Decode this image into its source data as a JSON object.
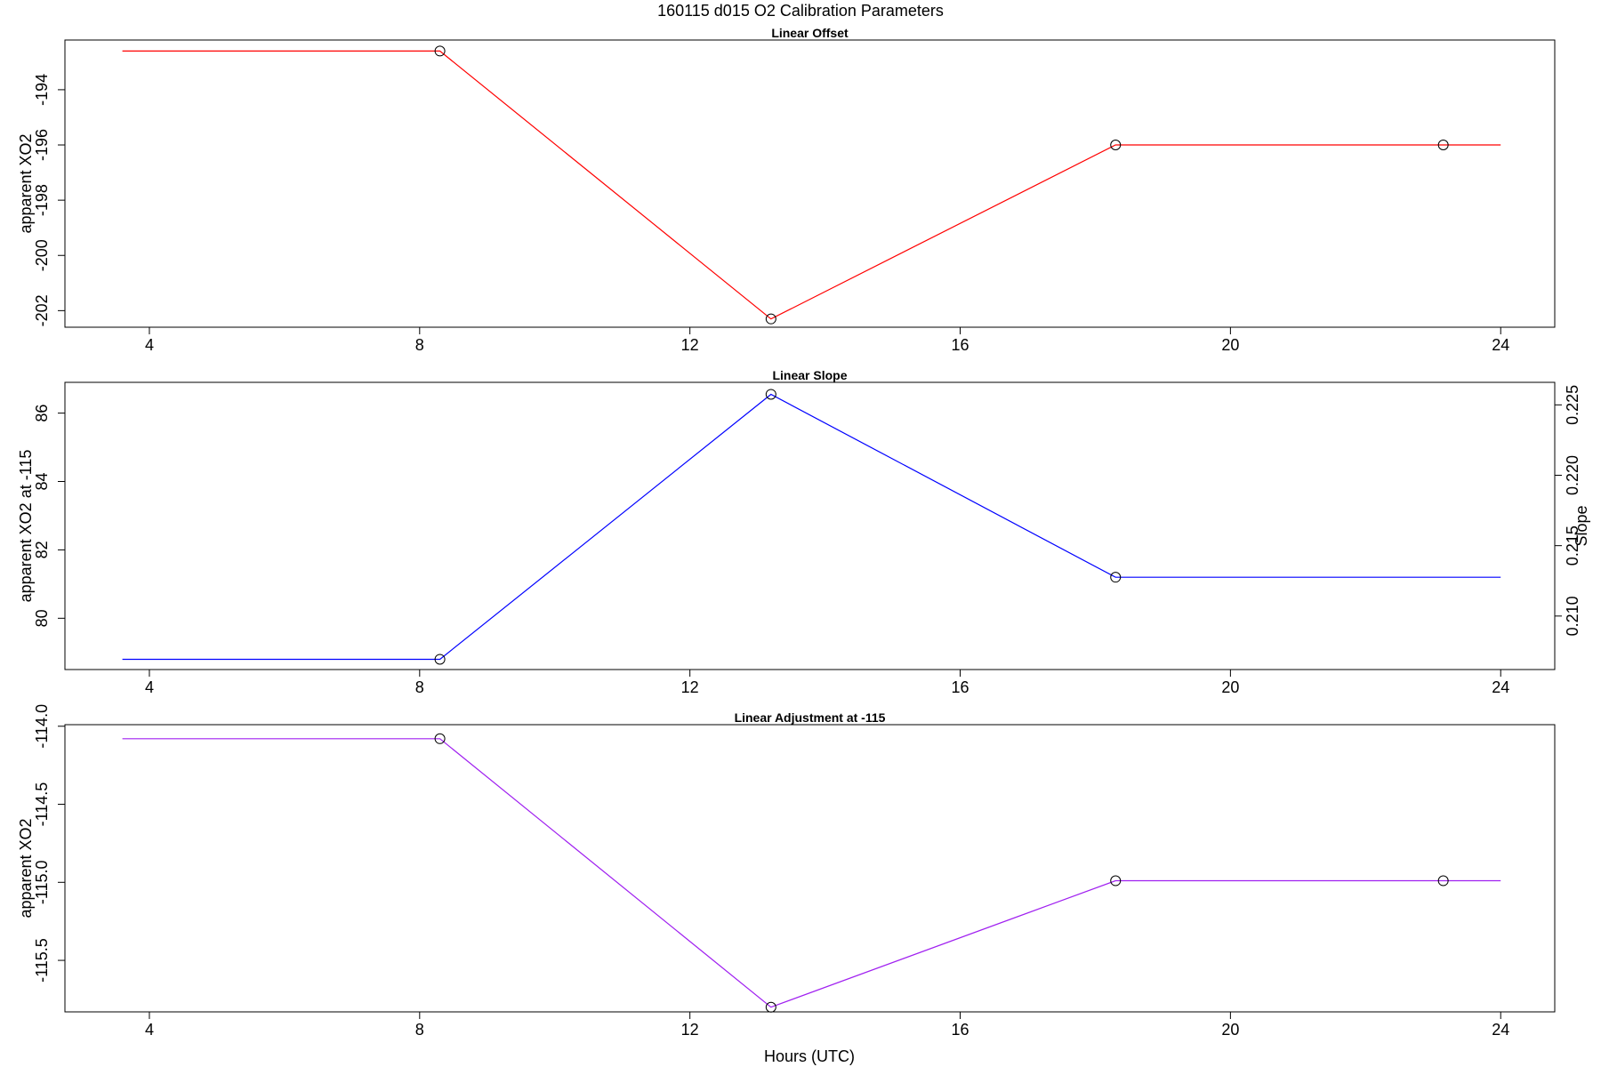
{
  "title": "160115   d015   O2 Calibration Parameters",
  "xlabel": "Hours (UTC)",
  "chart_data": [
    {
      "type": "line",
      "title": "Linear Offset",
      "xlabel": "",
      "ylabel": "apparent XO2",
      "xlim": [
        2.75,
        24.8
      ],
      "ylim": [
        -202.6,
        -192.2
      ],
      "xticks": [
        4,
        8,
        12,
        16,
        20,
        24
      ],
      "yticks": [
        -194,
        -196,
        -198,
        -200,
        -202
      ],
      "color": "#ff0000",
      "line": {
        "x": [
          3.6,
          8.3,
          13.2,
          18.3,
          24.0
        ],
        "y": [
          -192.6,
          -192.6,
          -202.3,
          -196.0,
          -196.0
        ]
      },
      "points": {
        "x": [
          8.3,
          13.2,
          18.3,
          23.15
        ],
        "y": [
          -192.6,
          -202.3,
          -196.0,
          -196.0
        ]
      }
    },
    {
      "type": "line",
      "title": "Linear Slope",
      "xlabel": "",
      "ylabel": "apparent XO2 at -115",
      "y2label": "Slope",
      "xlim": [
        2.75,
        24.8
      ],
      "ylim": [
        78.5,
        86.9
      ],
      "xticks": [
        4,
        8,
        12,
        16,
        20,
        24
      ],
      "yticks": [
        80,
        82,
        84,
        86
      ],
      "y2lim": [
        0.2062,
        0.2266
      ],
      "y2ticks": [
        0.21,
        0.215,
        0.22,
        0.225
      ],
      "y2tick_labels": [
        "0.210",
        "0.215",
        "0.220",
        "0.225"
      ],
      "color": "#0000ff",
      "line": {
        "x": [
          3.6,
          8.3,
          13.2,
          18.3,
          24.0
        ],
        "y": [
          78.8,
          78.8,
          86.55,
          81.2,
          81.2
        ]
      },
      "points": {
        "x": [
          8.3,
          13.2,
          18.3
        ],
        "y": [
          78.8,
          86.55,
          81.2
        ]
      }
    },
    {
      "type": "line",
      "title": "Linear Adjustment at -115",
      "xlabel": "Hours (UTC)",
      "ylabel": "apparent XO2",
      "xlim": [
        2.75,
        24.8
      ],
      "ylim": [
        -115.83,
        -113.99
      ],
      "xticks": [
        4,
        8,
        12,
        16,
        20,
        24
      ],
      "yticks": [
        -114.0,
        -114.5,
        -115.0,
        -115.5
      ],
      "ytick_labels": [
        "-114.0",
        "-114.5",
        "-115.0",
        "-115.5"
      ],
      "color": "#a020f0",
      "line": {
        "x": [
          3.6,
          8.3,
          13.2,
          18.3,
          24.0
        ],
        "y": [
          -114.08,
          -114.08,
          -115.8,
          -114.99,
          -114.99
        ]
      },
      "points": {
        "x": [
          8.3,
          13.2,
          18.3,
          23.15
        ],
        "y": [
          -114.08,
          -115.8,
          -114.99,
          -114.99
        ]
      }
    }
  ]
}
